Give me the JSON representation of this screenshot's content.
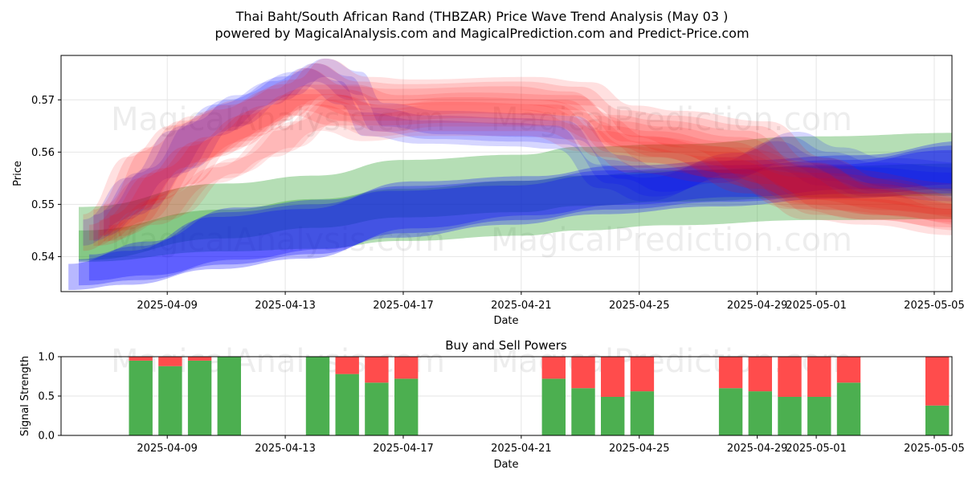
{
  "title_line1": "Thai Baht/South African Rand (THBZAR) Price Wave Trend Analysis (May 03 )",
  "title_line2": "powered by MagicalAnalysis.com and MagicalPrediction.com and Predict-Price.com",
  "watermarks": [
    "MagicalAnalysis.com",
    "MagicalPrediction.com"
  ],
  "colors": {
    "green_band": "#2ca02c",
    "blue_band": "#0000ff",
    "red_band": "#ff0000",
    "buy_bar": "#4caf50",
    "sell_bar": "#ff4c4c"
  },
  "chart_data": [
    {
      "type": "area",
      "title": "",
      "xlabel": "Date",
      "ylabel": "Price",
      "x_range_days": [
        -3.6,
        26.6
      ],
      "ylim": [
        0.5333,
        0.5785
      ],
      "yticks": [
        0.54,
        0.55,
        0.56,
        0.57
      ],
      "ytick_labels": [
        "0.54",
        "0.55",
        "0.56",
        "0.57"
      ],
      "xticks": [
        {
          "day": 0,
          "label": "2025-04-09"
        },
        {
          "day": 4,
          "label": "2025-04-13"
        },
        {
          "day": 8,
          "label": "2025-04-17"
        },
        {
          "day": 12,
          "label": "2025-04-21"
        },
        {
          "day": 16,
          "label": "2025-04-25"
        },
        {
          "day": 20,
          "label": "2025-04-29"
        },
        {
          "day": 22,
          "label": "2025-05-01"
        },
        {
          "day": 26,
          "label": "2025-05-05"
        }
      ],
      "grid": true,
      "series": [
        {
          "name": "green-outer",
          "color": "#2ca02c",
          "opacity": 0.35,
          "x": [
            -3,
            2,
            5,
            8,
            12,
            14,
            17,
            22,
            27
          ],
          "upper": [
            0.5495,
            0.554,
            0.5555,
            0.5585,
            0.5595,
            0.561,
            0.5615,
            0.563,
            0.5637
          ],
          "lower": [
            0.539,
            0.541,
            0.5415,
            0.543,
            0.544,
            0.545,
            0.546,
            0.547,
            0.5472
          ]
        },
        {
          "name": "green-inner",
          "color": "#2ca02c",
          "opacity": 0.35,
          "x": [
            -3,
            2,
            5,
            8,
            12,
            14,
            17,
            22,
            27
          ],
          "upper": [
            0.545,
            0.549,
            0.551,
            0.553,
            0.5545,
            0.5555,
            0.5565,
            0.5573,
            0.5578
          ],
          "lower": [
            0.5393,
            0.5435,
            0.5455,
            0.5475,
            0.5485,
            0.5497,
            0.5505,
            0.5513,
            0.5517
          ]
        },
        {
          "name": "blue-lower",
          "color": "#0000ff",
          "opacity": 0.28,
          "x": [
            -3,
            -1,
            2,
            5,
            8,
            12,
            15,
            19,
            23,
            27
          ],
          "upper": [
            0.5395,
            0.542,
            0.5485,
            0.55,
            0.5535,
            0.5545,
            0.5565,
            0.5575,
            0.5585,
            0.5613
          ],
          "lower": [
            0.5345,
            0.5355,
            0.5385,
            0.5405,
            0.5445,
            0.547,
            0.549,
            0.5505,
            0.552,
            0.553
          ]
        },
        {
          "name": "blue-wave",
          "color": "#0000ff",
          "opacity": 0.16,
          "x": [
            -2.5,
            -1,
            0.5,
            2,
            4,
            5,
            6.2,
            7,
            9,
            12,
            13.5,
            15,
            16.5,
            19,
            21,
            22.5,
            24,
            27
          ],
          "upper": [
            0.548,
            0.556,
            0.565,
            0.57,
            0.5745,
            0.577,
            0.5745,
            0.5685,
            0.567,
            0.5665,
            0.566,
            0.5585,
            0.556,
            0.559,
            0.563,
            0.56,
            0.558,
            0.557
          ],
          "lower": [
            0.543,
            0.548,
            0.556,
            0.564,
            0.57,
            0.5735,
            0.57,
            0.564,
            0.5625,
            0.562,
            0.5615,
            0.554,
            0.5515,
            0.555,
            0.5575,
            0.5545,
            0.5525,
            0.5515
          ]
        },
        {
          "name": "red-wave-1",
          "color": "#ff0000",
          "opacity": 0.12,
          "x": [
            -2.5,
            -1,
            0.5,
            2,
            4,
            5,
            6.5,
            8,
            12,
            14,
            15.5,
            17,
            20,
            22,
            24,
            27
          ],
          "upper": [
            0.549,
            0.56,
            0.566,
            0.569,
            0.573,
            0.577,
            0.5735,
            0.573,
            0.5735,
            0.5725,
            0.568,
            0.567,
            0.565,
            0.558,
            0.554,
            0.55
          ],
          "lower": [
            0.542,
            0.546,
            0.553,
            0.56,
            0.566,
            0.57,
            0.569,
            0.569,
            0.569,
            0.568,
            0.562,
            0.56,
            0.553,
            0.548,
            0.547,
            0.545
          ]
        },
        {
          "name": "red-wave-2",
          "color": "#ff0000",
          "opacity": 0.12,
          "x": [
            -2.3,
            -0.5,
            1,
            3,
            4.5,
            6,
            7.5,
            10,
            13.5,
            15,
            16.5,
            19,
            21.5,
            24,
            27
          ],
          "upper": [
            0.547,
            0.556,
            0.562,
            0.568,
            0.572,
            0.572,
            0.57,
            0.5705,
            0.57,
            0.565,
            0.564,
            0.562,
            0.557,
            0.552,
            0.55
          ],
          "lower": [
            0.544,
            0.55,
            0.558,
            0.563,
            0.568,
            0.566,
            0.566,
            0.5665,
            0.566,
            0.56,
            0.559,
            0.556,
            0.55,
            0.548,
            0.5465
          ]
        },
        {
          "name": "red-wave-3",
          "color": "#ff0000",
          "opacity": 0.1,
          "x": [
            -2,
            0,
            2,
            4,
            5.5,
            7,
            9,
            12.5,
            14.5,
            16,
            19,
            22,
            27
          ],
          "upper": [
            0.546,
            0.552,
            0.558,
            0.565,
            0.57,
            0.568,
            0.569,
            0.569,
            0.566,
            0.562,
            0.56,
            0.556,
            0.553
          ],
          "lower": [
            0.543,
            0.547,
            0.555,
            0.56,
            0.565,
            0.563,
            0.564,
            0.564,
            0.561,
            0.557,
            0.555,
            0.55,
            0.548
          ]
        }
      ]
    },
    {
      "type": "bar",
      "title": "Buy and Sell Powers",
      "xlabel": "Date",
      "ylabel": "Signal Strength",
      "ylim": [
        0,
        1.0
      ],
      "yticks": [
        0.0,
        0.5,
        1.0
      ],
      "ytick_labels": [
        "0.0",
        "0.5",
        "1.0"
      ],
      "xticks": [
        {
          "day": 0,
          "label": "2025-04-09"
        },
        {
          "day": 4,
          "label": "2025-04-13"
        },
        {
          "day": 8,
          "label": "2025-04-17"
        },
        {
          "day": 12,
          "label": "2025-04-21"
        },
        {
          "day": 16,
          "label": "2025-04-25"
        },
        {
          "day": 20,
          "label": "2025-04-29"
        },
        {
          "day": 22,
          "label": "2025-05-01"
        },
        {
          "day": 26,
          "label": "2025-05-05"
        }
      ],
      "categories": [
        "2025-04-08",
        "2025-04-09",
        "2025-04-10",
        "2025-04-11",
        "2025-04-14",
        "2025-04-15",
        "2025-04-16",
        "2025-04-17",
        "2025-04-22",
        "2025-04-23",
        "2025-04-24",
        "2025-04-25",
        "2025-04-28",
        "2025-04-29",
        "2025-04-30",
        "2025-05-01",
        "2025-05-02",
        "2025-05-05"
      ],
      "bar_days": [
        -0.9,
        0.1,
        1.1,
        2.1,
        5.1,
        6.1,
        7.1,
        8.1,
        13.1,
        14.1,
        15.1,
        16.1,
        19.1,
        20.1,
        21.1,
        22.1,
        23.1,
        26.1
      ],
      "series": [
        {
          "name": "Buy",
          "color": "#4caf50",
          "values": [
            0.95,
            0.88,
            0.95,
            1.0,
            1.0,
            0.78,
            0.67,
            0.72,
            0.72,
            0.6,
            0.49,
            0.56,
            0.6,
            0.56,
            0.49,
            0.49,
            0.67,
            0.38
          ]
        },
        {
          "name": "Sell",
          "color": "#ff4c4c",
          "values": [
            0.05,
            0.12,
            0.05,
            0.0,
            0.0,
            0.22,
            0.33,
            0.28,
            0.28,
            0.4,
            0.51,
            0.44,
            0.4,
            0.44,
            0.51,
            0.51,
            0.33,
            0.62
          ]
        }
      ]
    }
  ]
}
